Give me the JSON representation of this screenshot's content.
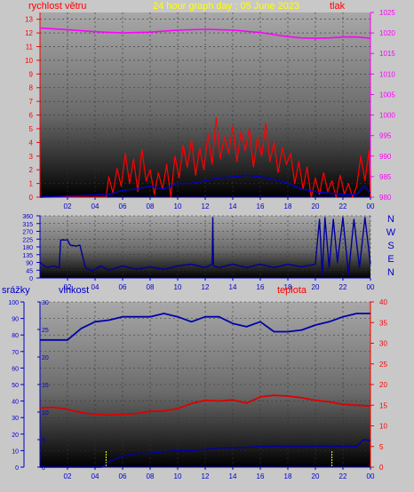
{
  "header": {
    "title": "24 hour graph day : 05 June 2023",
    "left_label": "rychlost větru",
    "right_label": "tlak"
  },
  "colors": {
    "background": "#c8c8c8",
    "wind": "#ff0000",
    "gust_avg": "#0000cc",
    "pressure": "#ff00ff",
    "direction": "#000099",
    "humidity": "#0000aa",
    "temperature": "#dd0000",
    "rain": "#0000aa",
    "rain_marker": "#ffff00",
    "title": "#ffff00",
    "red_text": "#ff0000",
    "blue_text": "#0000cc"
  },
  "chart_data": [
    {
      "type": "line",
      "name": "wind-pressure",
      "x_ticks": [
        "02",
        "04",
        "06",
        "08",
        "10",
        "12",
        "14",
        "16",
        "18",
        "20",
        "22",
        "00"
      ],
      "y_left_ticks": [
        "0",
        "1",
        "2",
        "3",
        "4",
        "5",
        "6",
        "7",
        "8",
        "9",
        "10",
        "11",
        "12",
        "13"
      ],
      "y_left_range": [
        0,
        13.5
      ],
      "y_right_ticks": [
        "980",
        "985",
        "990",
        "995",
        "1000",
        "1005",
        "1010",
        "1015",
        "1020",
        "1025"
      ],
      "y_right_range": [
        980,
        1025
      ],
      "series": [
        {
          "key": "pressure",
          "x": [
            0,
            2,
            4,
            6,
            8,
            10,
            12,
            14,
            16,
            17,
            18,
            19,
            20,
            21,
            22,
            23,
            24
          ],
          "y": [
            1021.2,
            1020.8,
            1020.3,
            1020.0,
            1020.2,
            1020.7,
            1020.9,
            1020.7,
            1020.1,
            1019.6,
            1019.1,
            1018.8,
            1018.7,
            1018.8,
            1019.0,
            1019.0,
            1018.7
          ]
        },
        {
          "key": "wind",
          "x": [
            0,
            4.8,
            5.0,
            5.3,
            5.6,
            5.9,
            6.2,
            6.5,
            6.8,
            7.1,
            7.4,
            7.7,
            8.0,
            8.3,
            8.6,
            8.9,
            9.2,
            9.5,
            9.8,
            10.1,
            10.4,
            10.7,
            11.0,
            11.3,
            11.6,
            11.9,
            12.2,
            12.5,
            12.8,
            13.1,
            13.4,
            13.7,
            14.0,
            14.3,
            14.6,
            14.9,
            15.2,
            15.5,
            15.8,
            16.1,
            16.4,
            16.7,
            17.0,
            17.3,
            17.6,
            17.9,
            18.2,
            18.5,
            18.8,
            19.1,
            19.4,
            19.7,
            20.0,
            20.3,
            20.6,
            20.9,
            21.2,
            21.5,
            21.8,
            22.1,
            22.4,
            22.7,
            23.0,
            23.3,
            23.6,
            23.9,
            24
          ],
          "y": [
            0,
            0,
            1.5,
            0.3,
            2.1,
            0.8,
            3.2,
            1.0,
            2.8,
            0.4,
            3.5,
            1.2,
            2.0,
            0.2,
            1.8,
            0.6,
            2.4,
            0,
            3.0,
            1.4,
            3.8,
            2.2,
            4.2,
            1.6,
            3.6,
            2.0,
            4.6,
            2.4,
            5.8,
            2.8,
            4.4,
            3.2,
            5.2,
            2.6,
            4.8,
            3.4,
            5.0,
            2.2,
            4.4,
            3.0,
            5.4,
            2.6,
            4.0,
            1.8,
            3.6,
            2.4,
            3.2,
            1.0,
            2.6,
            0.6,
            2.2,
            0,
            1.4,
            0.2,
            1.8,
            0.4,
            1.2,
            0,
            1.6,
            0.2,
            1.0,
            0,
            0.8,
            3.0,
            1.2,
            3.4,
            0
          ]
        },
        {
          "key": "gust_avg",
          "x": [
            0,
            5,
            6,
            7,
            8,
            9,
            10,
            11,
            12,
            13,
            14,
            15,
            16,
            17,
            18,
            19,
            20,
            21,
            22,
            23,
            23.5,
            24
          ],
          "y": [
            0,
            0.2,
            0.5,
            0.6,
            0.8,
            0.6,
            1.0,
            1.0,
            1.2,
            1.4,
            1.5,
            1.6,
            1.5,
            1.3,
            1.0,
            0.6,
            0.4,
            0.3,
            0.2,
            0.2,
            0.8,
            0.3
          ]
        }
      ]
    },
    {
      "type": "line",
      "name": "wind-direction",
      "x_ticks": [
        "02",
        "04",
        "06",
        "08",
        "10",
        "12",
        "14",
        "16",
        "18",
        "20",
        "22",
        "00"
      ],
      "y_ticks": [
        "0",
        "45",
        "90",
        "135",
        "180",
        "225",
        "270",
        "315",
        "360"
      ],
      "y_range": [
        0,
        360
      ],
      "compass_labels": [
        "N",
        "W",
        "S",
        "E",
        "N"
      ],
      "series": [
        {
          "key": "direction",
          "x": [
            0,
            0.5,
            1.0,
            1.4,
            1.5,
            2.0,
            2.2,
            2.6,
            2.9,
            3.3,
            3.8,
            4.4,
            5.0,
            6.0,
            7.0,
            8.0,
            9.0,
            10.0,
            11.0,
            12.0,
            12.5,
            12.55,
            12.6,
            13.0,
            14.0,
            15.0,
            16.0,
            17.0,
            18.0,
            19.0,
            20.0,
            20.3,
            20.5,
            20.7,
            21.0,
            21.3,
            21.6,
            22.0,
            22.4,
            22.8,
            23.2,
            23.6,
            24.0
          ],
          "y": [
            90,
            60,
            70,
            60,
            220,
            220,
            190,
            185,
            190,
            60,
            40,
            70,
            45,
            70,
            50,
            65,
            50,
            70,
            80,
            60,
            80,
            350,
            70,
            60,
            80,
            60,
            80,
            60,
            80,
            65,
            80,
            340,
            20,
            350,
            60,
            340,
            90,
            350,
            20,
            340,
            60,
            350,
            80
          ]
        }
      ]
    },
    {
      "type": "line",
      "name": "humidity-temperature-rain",
      "x_ticks": [
        "02",
        "04",
        "06",
        "08",
        "10",
        "12",
        "14",
        "16",
        "18",
        "20",
        "22",
        "00"
      ],
      "y_rain_ticks": [
        "0",
        "10",
        "20",
        "30",
        "40",
        "50",
        "60",
        "70",
        "80",
        "90",
        "100"
      ],
      "y_hum_ticks": [
        "0",
        "5",
        "10",
        "15",
        "20",
        "25",
        "30"
      ],
      "y_temp_ticks": [
        "0",
        "5",
        "10",
        "15",
        "20",
        "25",
        "30",
        "35",
        "40"
      ],
      "rain_range": [
        0,
        100
      ],
      "hum_range": [
        0,
        30
      ],
      "temp_range": [
        0,
        40
      ],
      "labels": {
        "rain": "srážky",
        "humidity": "vlhkost",
        "temperature": "teplota"
      },
      "series": [
        {
          "key": "humidity",
          "x": [
            0,
            1,
            2,
            3,
            4,
            5,
            6,
            7,
            8,
            9,
            10,
            11,
            12,
            13,
            14,
            15,
            16,
            17,
            18,
            19,
            20,
            21,
            22,
            23,
            24
          ],
          "y": [
            77,
            77,
            77,
            84,
            88,
            89,
            91,
            91,
            91,
            93,
            91,
            88,
            91,
            91,
            87,
            85,
            88,
            82,
            82,
            83,
            86,
            88,
            91,
            93,
            93
          ]
        },
        {
          "key": "temperature",
          "x": [
            0,
            1,
            2,
            3,
            4,
            5,
            6,
            7,
            8,
            9,
            10,
            11,
            12,
            13,
            14,
            15,
            16,
            17,
            18,
            19,
            20,
            21,
            22,
            23,
            24
          ],
          "y": [
            14.3,
            14.5,
            14.0,
            13.2,
            12.8,
            12.6,
            12.8,
            13.0,
            13.5,
            13.6,
            14.2,
            15.4,
            16.2,
            16.0,
            16.3,
            15.5,
            17.0,
            17.4,
            17.2,
            16.8,
            16.2,
            15.8,
            15.2,
            15.0,
            14.8
          ]
        },
        {
          "key": "rain",
          "x": [
            0,
            4.5,
            5,
            5.5,
            6,
            7,
            8,
            9,
            10,
            11,
            12,
            13,
            14,
            15,
            16,
            17,
            18,
            19,
            20,
            21,
            22,
            23,
            23.5,
            24
          ],
          "y": [
            0,
            0,
            1,
            1.5,
            2,
            2.5,
            2.5,
            2.8,
            3,
            3,
            3.2,
            3.5,
            3.5,
            3.6,
            3.8,
            3.8,
            3.8,
            3.8,
            3.8,
            3.8,
            3.8,
            3.8,
            5,
            4.8
          ]
        }
      ],
      "rain_markers_x": [
        4.8,
        21.2
      ]
    }
  ]
}
